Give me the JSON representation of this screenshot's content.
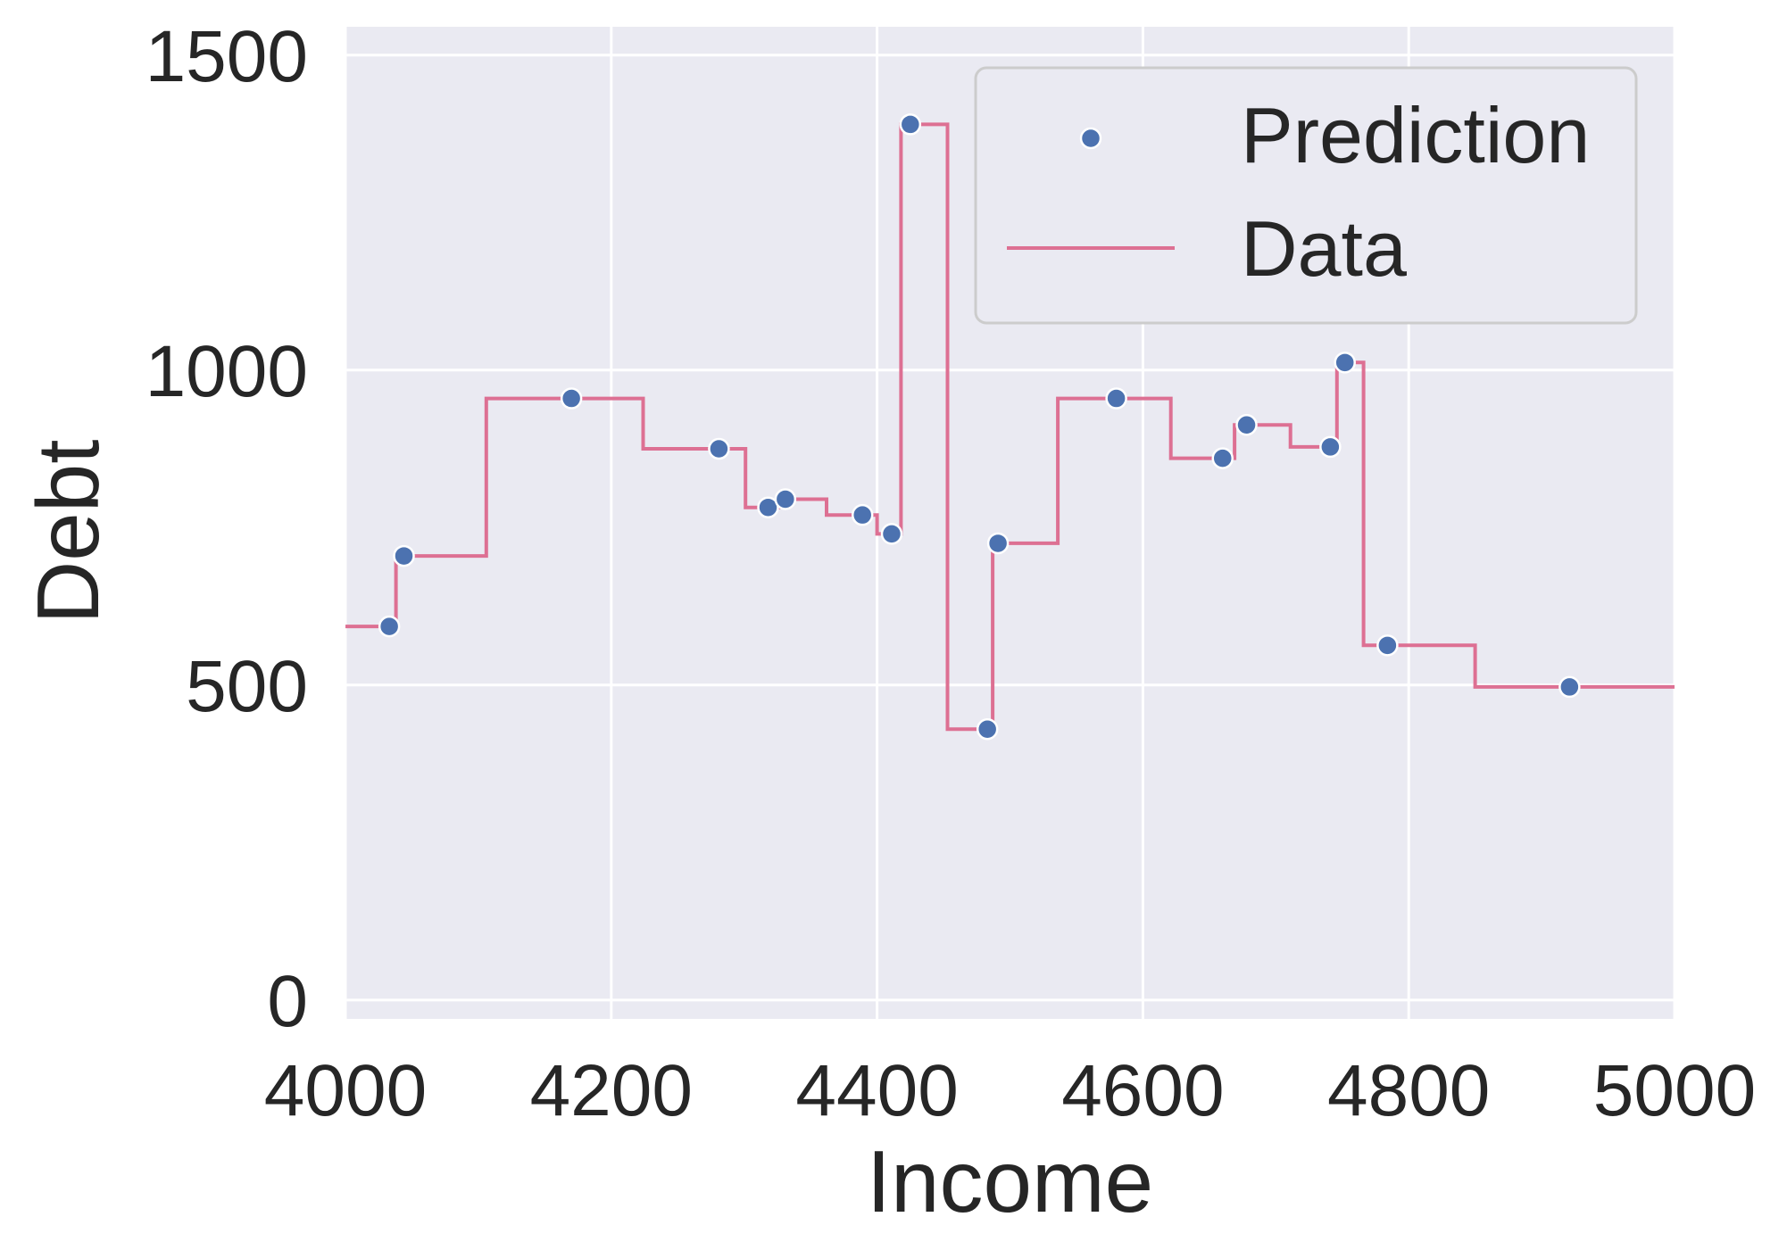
{
  "chart_data": {
    "type": "line",
    "xlabel": "Income",
    "ylabel": "Debt",
    "xlim": [
      4000,
      5000
    ],
    "ylim": [
      -30,
      1545
    ],
    "xticks": [
      4000,
      4200,
      4400,
      4600,
      4800,
      5000
    ],
    "yticks": [
      0,
      500,
      1000,
      1500
    ],
    "grid": true,
    "legend_position": "top-right",
    "colors": {
      "background": "#eaeaf2",
      "grid": "#ffffff",
      "prediction": "#4c72b0",
      "data": "#dd7093"
    },
    "series": [
      {
        "name": "Prediction",
        "kind": "scatter",
        "x": [
          4033,
          4044,
          4170,
          4281,
          4318,
          4331,
          4389,
          4411,
          4425,
          4483,
          4491,
          4580,
          4660,
          4678,
          4741,
          4752,
          4784,
          4921
        ],
        "y": [
          593,
          705,
          955,
          875,
          782,
          795,
          770,
          740,
          1390,
          430,
          725,
          955,
          860,
          913,
          878,
          1012,
          563,
          497
        ]
      },
      {
        "name": "Data",
        "kind": "step",
        "x": [
          4000,
          4038,
          4038,
          4106,
          4106,
          4224,
          4224,
          4301,
          4301,
          4326,
          4326,
          4362,
          4362,
          4400,
          4400,
          4418,
          4418,
          4453,
          4453,
          4487,
          4487,
          4536,
          4536,
          4621,
          4621,
          4669,
          4669,
          4711,
          4711,
          4746,
          4746,
          4766,
          4766,
          4850,
          4850,
          5000
        ],
        "y": [
          593,
          593,
          705,
          705,
          955,
          955,
          875,
          875,
          782,
          782,
          795,
          795,
          770,
          770,
          740,
          740,
          1390,
          1390,
          430,
          430,
          725,
          725,
          955,
          955,
          860,
          860,
          913,
          913,
          878,
          878,
          1012,
          1012,
          563,
          563,
          497,
          497
        ]
      }
    ]
  }
}
